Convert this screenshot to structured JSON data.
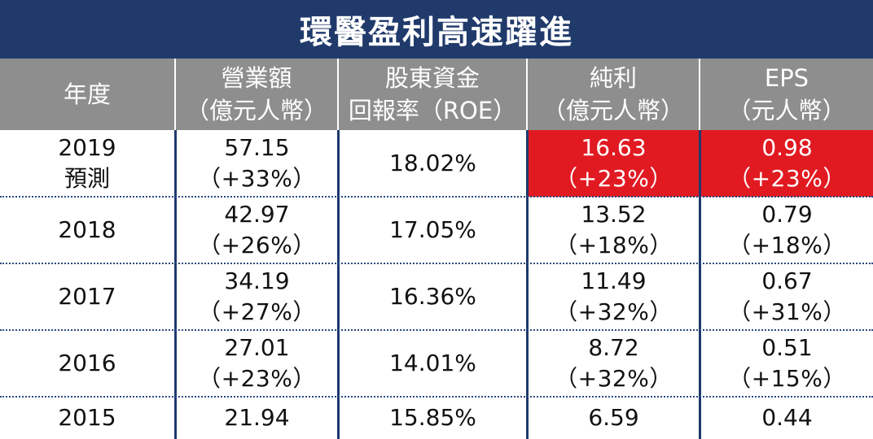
{
  "title": "環醫盈利高速躍進",
  "columns": [
    {
      "line1": "年度",
      "line2": ""
    },
    {
      "line1": "營業額",
      "line2": "（億元人幣）"
    },
    {
      "line1": "股東資金",
      "line2": "回報率（ROE）"
    },
    {
      "line1": "純利",
      "line2": "（億元人幣）"
    },
    {
      "line1": "EPS",
      "line2": "（元人幣）"
    }
  ],
  "highlight_color": "#e11a22",
  "chart_data": {
    "type": "table",
    "title": "環醫盈利高速躍進",
    "headers": [
      "年度",
      "營業額（億元人幣）",
      "股東資金回報率（ROE）",
      "純利（億元人幣）",
      "EPS（元人幣）"
    ],
    "rows": [
      {
        "year": "2019",
        "year_note": "預測",
        "revenue": "57.15",
        "revenue_growth": "（+33%）",
        "roe": "18.02%",
        "profit": "16.63",
        "profit_growth": "（+23%）",
        "eps": "0.98",
        "eps_growth": "（+23%）",
        "highlight": true
      },
      {
        "year": "2018",
        "year_note": "",
        "revenue": "42.97",
        "revenue_growth": "（+26%）",
        "roe": "17.05%",
        "profit": "13.52",
        "profit_growth": "（+18%）",
        "eps": "0.79",
        "eps_growth": "（+18%）",
        "highlight": false
      },
      {
        "year": "2017",
        "year_note": "",
        "revenue": "34.19",
        "revenue_growth": "（+27%）",
        "roe": "16.36%",
        "profit": "11.49",
        "profit_growth": "（+32%）",
        "eps": "0.67",
        "eps_growth": "（+31%）",
        "highlight": false
      },
      {
        "year": "2016",
        "year_note": "",
        "revenue": "27.01",
        "revenue_growth": "（+23%）",
        "roe": "14.01%",
        "profit": "8.72",
        "profit_growth": "（+32%）",
        "eps": "0.51",
        "eps_growth": "（+15%）",
        "highlight": false
      },
      {
        "year": "2015",
        "year_note": "",
        "revenue": "21.94",
        "revenue_growth": "",
        "roe": "15.85%",
        "profit": "6.59",
        "profit_growth": "",
        "eps": "0.44",
        "eps_growth": "",
        "highlight": false
      }
    ]
  }
}
